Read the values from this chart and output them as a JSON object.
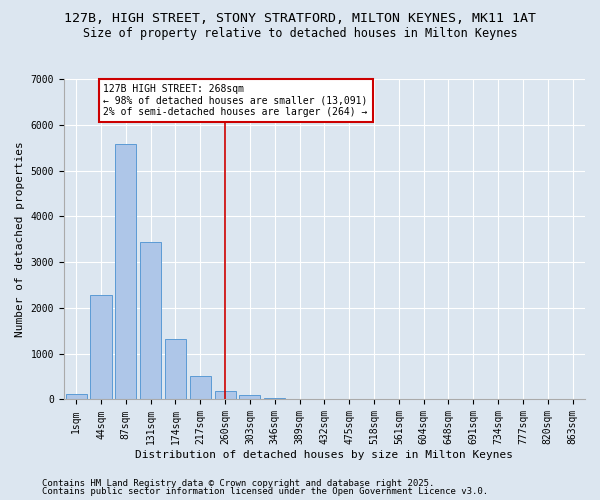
{
  "title_line1": "127B, HIGH STREET, STONY STRATFORD, MILTON KEYNES, MK11 1AT",
  "title_line2": "Size of property relative to detached houses in Milton Keynes",
  "xlabel": "Distribution of detached houses by size in Milton Keynes",
  "ylabel": "Number of detached properties",
  "categories": [
    "1sqm",
    "44sqm",
    "87sqm",
    "131sqm",
    "174sqm",
    "217sqm",
    "260sqm",
    "303sqm",
    "346sqm",
    "389sqm",
    "432sqm",
    "475sqm",
    "518sqm",
    "561sqm",
    "604sqm",
    "648sqm",
    "691sqm",
    "734sqm",
    "777sqm",
    "820sqm",
    "863sqm"
  ],
  "bar_heights": [
    110,
    2280,
    5570,
    3440,
    1310,
    520,
    185,
    95,
    40,
    0,
    0,
    0,
    0,
    0,
    0,
    0,
    0,
    0,
    0,
    0,
    0
  ],
  "bar_color": "#aec6e8",
  "bar_edge_color": "#5b9bd5",
  "vline_x_idx": 6,
  "vline_color": "#cc0000",
  "annotation_text": "127B HIGH STREET: 268sqm\n← 98% of detached houses are smaller (13,091)\n2% of semi-detached houses are larger (264) →",
  "annotation_box_color": "#cc0000",
  "ylim": [
    0,
    7000
  ],
  "yticks": [
    0,
    1000,
    2000,
    3000,
    4000,
    5000,
    6000,
    7000
  ],
  "background_color": "#dce6f0",
  "plot_bg_color": "#dce6f0",
  "footer_line1": "Contains HM Land Registry data © Crown copyright and database right 2025.",
  "footer_line2": "Contains public sector information licensed under the Open Government Licence v3.0.",
  "title_fontsize": 9.5,
  "subtitle_fontsize": 8.5,
  "axis_label_fontsize": 8,
  "tick_fontsize": 7,
  "annotation_fontsize": 7,
  "footer_fontsize": 6.5
}
